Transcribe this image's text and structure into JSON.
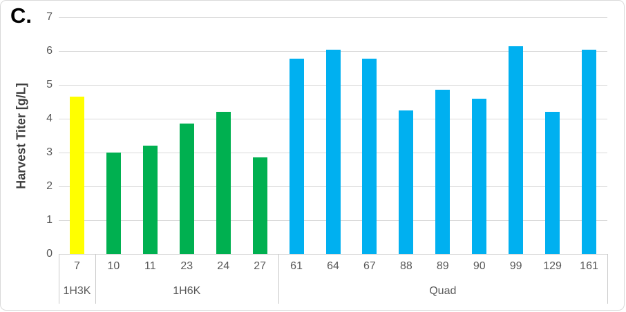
{
  "panel_label": "C.",
  "colors": {
    "group_1H3K": "#FFFF00",
    "group_1H6K": "#00B050",
    "group_Quad": "#00B0F0",
    "gridline": "#D9D9D9",
    "axis_line": "#C9C9C9",
    "tick_text": "#595959",
    "axis_title_text": "#3F3F3F"
  },
  "chart_data": {
    "type": "bar",
    "title": "",
    "xlabel": "",
    "ylabel": "Harvest Titer [g/L]",
    "ylim": [
      0,
      7
    ],
    "ytick_step": 1,
    "yticks": [
      "0",
      "1",
      "2",
      "3",
      "4",
      "5",
      "6",
      "7"
    ],
    "grid": true,
    "legend": "none",
    "axis_style": "excel-multilevel-category",
    "groups": [
      {
        "label": "1H3K",
        "color": "#FFFF00",
        "categories": [
          "7"
        ],
        "values": [
          4.65
        ]
      },
      {
        "label": "1H6K",
        "color": "#00B050",
        "categories": [
          "10",
          "11",
          "23",
          "24",
          "27"
        ],
        "values": [
          3.0,
          3.2,
          3.85,
          4.2,
          2.85
        ]
      },
      {
        "label": "Quad",
        "color": "#00B0F0",
        "categories": [
          "61",
          "64",
          "67",
          "88",
          "89",
          "90",
          "99",
          "129",
          "161"
        ],
        "values": [
          5.78,
          6.05,
          5.78,
          4.25,
          4.85,
          4.6,
          6.15,
          4.2,
          6.05
        ]
      }
    ]
  }
}
